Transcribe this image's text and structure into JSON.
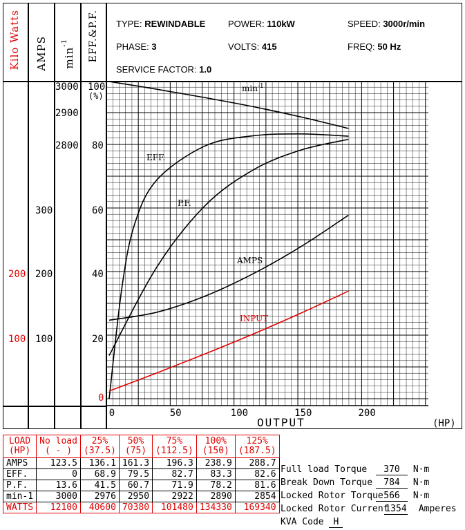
{
  "header": {
    "col_kw": "Kilo Watts",
    "col_amps": "AMPS",
    "col_min": "min",
    "col_min_sup": "-1",
    "col_eff": "EFF.&P.F.",
    "type_label": "TYPE:",
    "type_value": "REWINDABLE",
    "power_label": "POWER:",
    "power_value": "110kW",
    "speed_label": "SPEED:",
    "speed_value": "3000r/min",
    "phase_label": "PHASE:",
    "phase_value": "3",
    "volts_label": "VOLTS:",
    "volts_value": "415",
    "freq_label": "FREQ:",
    "freq_value": "50 Hz",
    "sf_label": "SERVICE FACTOR:",
    "sf_value": "1.0"
  },
  "scales": {
    "kw_ticks": [
      "200",
      "100"
    ],
    "amps_ticks": [
      "300",
      "200",
      "100"
    ],
    "rpm_ticks": [
      "3000",
      "2900",
      "2800"
    ],
    "pct_ticks": [
      "100",
      "80",
      "60",
      "40",
      "20",
      "0"
    ],
    "pct_unit": "(%)",
    "x_ticks": [
      "0",
      "50",
      "100",
      "150",
      "200"
    ],
    "x_label": "OUTPUT",
    "x_unit": "(HP)"
  },
  "chart_data": {
    "type": "line",
    "xlabel": "OUTPUT",
    "x_unit": "(HP)",
    "xlim": [
      0,
      250
    ],
    "ylim_pct": [
      0,
      100
    ],
    "rpm_axis": [
      3000,
      2800
    ],
    "amps_axis_ticks": [
      100,
      200,
      300
    ],
    "kw_axis_ticks": [
      100,
      200
    ],
    "grid": true,
    "series": [
      {
        "name": "min-1",
        "label": "min",
        "label_sup": "-1",
        "axis": "rpm",
        "x": [
          0,
          37.5,
          75,
          112.5,
          150,
          187.5
        ],
        "values": [
          3000,
          2976,
          2950,
          2922,
          2890,
          2854
        ]
      },
      {
        "name": "EFF.",
        "label": "EFF.",
        "axis": "pct",
        "x": [
          0,
          37.5,
          75,
          112.5,
          150,
          187.5
        ],
        "values": [
          0,
          68.9,
          79.5,
          82.7,
          83.3,
          82.6
        ]
      },
      {
        "name": "P.F.",
        "label": "P.F.",
        "axis": "pct",
        "x": [
          0,
          37.5,
          75,
          112.5,
          150,
          187.5
        ],
        "values": [
          13.6,
          41.5,
          60.7,
          71.9,
          78.2,
          81.6
        ]
      },
      {
        "name": "AMPS",
        "label": "AMPS",
        "axis": "amps",
        "x": [
          0,
          37.5,
          75,
          112.5,
          150,
          187.5
        ],
        "values": [
          123.5,
          136.1,
          161.3,
          196.3,
          238.9,
          288.7
        ]
      },
      {
        "name": "INPUT",
        "label": "INPUT",
        "axis": "kw",
        "color": "#e00000",
        "x": [
          0,
          37.5,
          75,
          112.5,
          150,
          187.5
        ],
        "values": [
          12.1,
          40.6,
          70.38,
          101.48,
          134.33,
          169.34
        ]
      }
    ]
  },
  "load_table": {
    "headers": [
      [
        "LOAD",
        "(HP)"
      ],
      [
        "No load",
        "( - )"
      ],
      [
        "25%",
        "(37.5)"
      ],
      [
        "50%",
        "(75)"
      ],
      [
        "75%",
        "(112.5)"
      ],
      [
        "100%",
        "(150)"
      ],
      [
        "125%",
        "(187.5)"
      ]
    ],
    "rows": [
      {
        "label": "AMPS",
        "values": [
          "123.5",
          "136.1",
          "161.3",
          "196.3",
          "238.9",
          "288.7"
        ]
      },
      {
        "label": "EFF.",
        "values": [
          "0",
          "68.9",
          "79.5",
          "82.7",
          "83.3",
          "82.6"
        ]
      },
      {
        "label": "P.F.",
        "values": [
          "13.6",
          "41.5",
          "60.7",
          "71.9",
          "78.2",
          "81.6"
        ]
      },
      {
        "label": "min-1",
        "values": [
          "3000",
          "2976",
          "2950",
          "2922",
          "2890",
          "2854"
        ]
      },
      {
        "label": "WATTS",
        "values": [
          "12100",
          "40600",
          "70380",
          "101480",
          "134330",
          "169340"
        ]
      }
    ]
  },
  "specs": {
    "full_load_torque_label": "Full load Torque",
    "full_load_torque_value": "370",
    "full_load_torque_unit": "N·m",
    "break_down_torque_label": "Break Down Torque",
    "break_down_torque_value": "784",
    "break_down_torque_unit": "N·m",
    "locked_rotor_torque_label": "Locked Rotor Torque",
    "locked_rotor_torque_value": "566",
    "locked_rotor_torque_unit": "N·m",
    "locked_rotor_current_label": "Locked Rotor Current",
    "locked_rotor_current_value": "1354",
    "locked_rotor_current_unit": "Amperes",
    "kva_code_label": "KVA Code",
    "kva_code_value": "H"
  }
}
